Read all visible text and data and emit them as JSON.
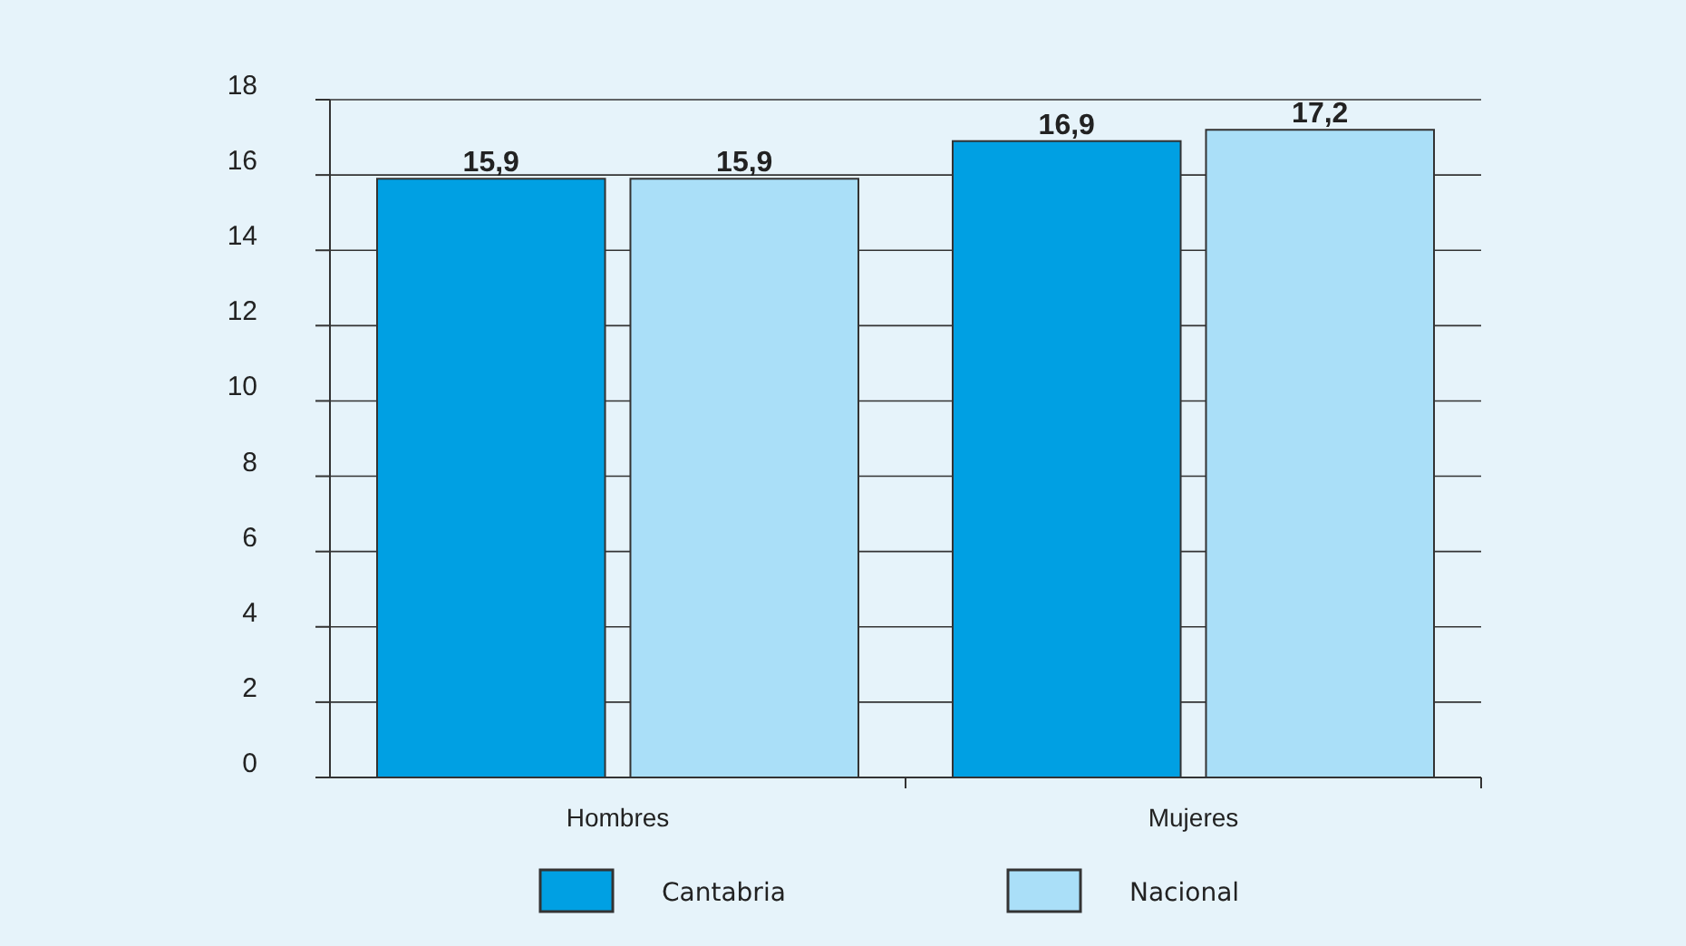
{
  "chart_data": {
    "type": "bar",
    "categories": [
      "Hombres",
      "Mujeres"
    ],
    "series": [
      {
        "name": "Cantabria",
        "color": "#00a0e3",
        "values": [
          15.9,
          16.9
        ],
        "value_labels": [
          "15,9",
          "16,9"
        ]
      },
      {
        "name": "Nacional",
        "color": "#aadff8",
        "values": [
          15.9,
          17.2
        ],
        "value_labels": [
          "15,9",
          "17,2"
        ]
      }
    ],
    "ylim": [
      0,
      18
    ],
    "yticks": [
      0,
      2,
      4,
      6,
      8,
      10,
      12,
      14,
      16,
      18
    ],
    "grid": "y",
    "legend": "bottom"
  }
}
